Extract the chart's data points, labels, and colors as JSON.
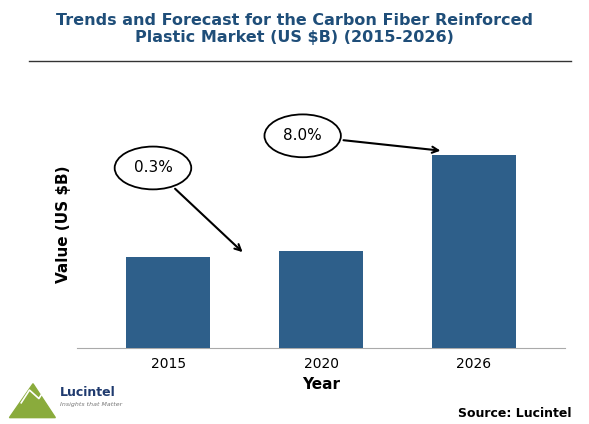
{
  "title_line1": "Trends and Forecast for the Carbon Fiber Reinforced",
  "title_line2": "Plastic Market (US $B) (2015-2026)",
  "categories": [
    "2015",
    "2020",
    "2026"
  ],
  "values": [
    4.8,
    5.1,
    10.2
  ],
  "bar_color": "#2E5F8A",
  "xlabel": "Year",
  "ylabel": "Value (US $B)",
  "ylim": [
    0,
    13
  ],
  "title_color": "#1F4E79",
  "annotation1_text": "0.3%",
  "annotation2_text": "8.0%",
  "source_text": "Source: Lucintel",
  "bg_color": "#FFFFFF",
  "title_fontsize": 11.5,
  "axis_label_fontsize": 11,
  "tick_fontsize": 10
}
